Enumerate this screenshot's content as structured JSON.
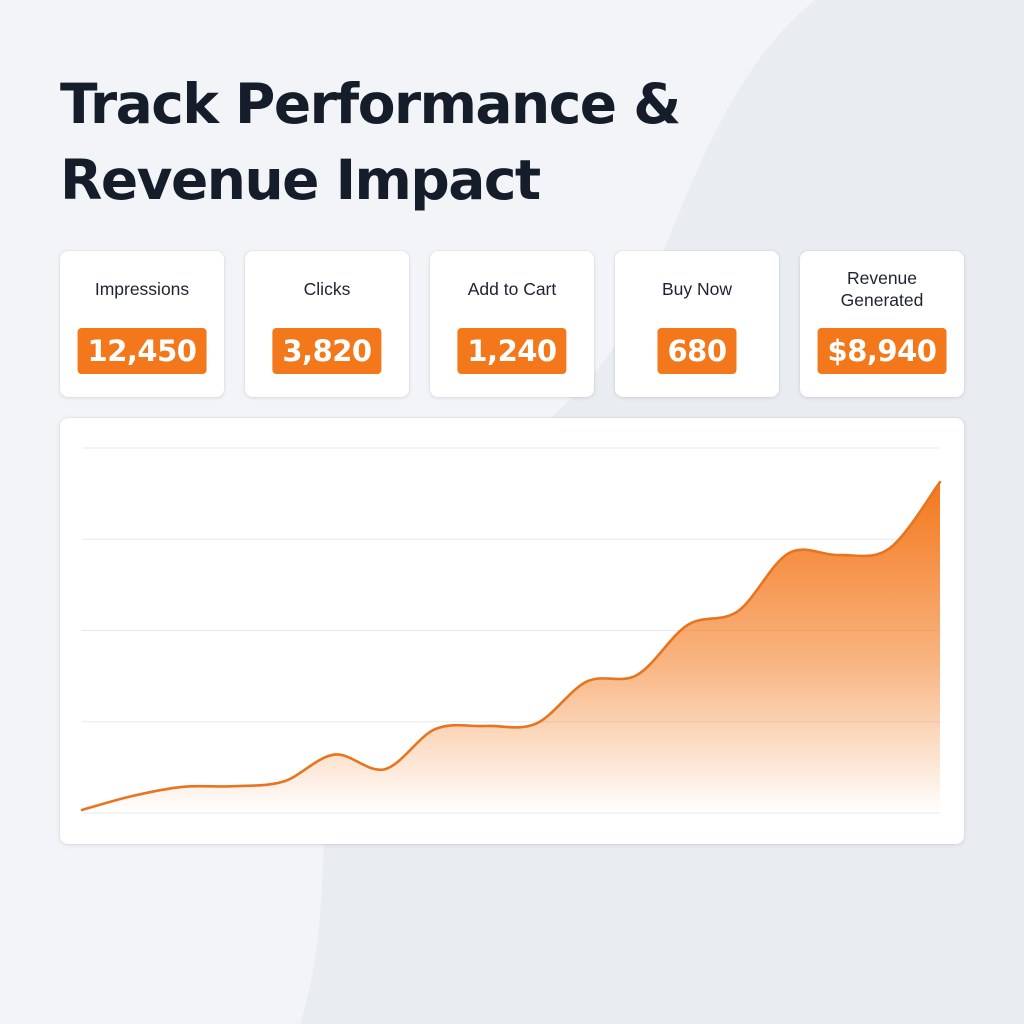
{
  "headline": {
    "line1": "Track Performance &",
    "line2": "Revenue Impact"
  },
  "metrics": [
    {
      "label": "Impressions",
      "value": "12,450"
    },
    {
      "label": "Clicks",
      "value": "3,820"
    },
    {
      "label": "Add to Cart",
      "value": "1,240"
    },
    {
      "label": "Buy Now",
      "value": "680"
    },
    {
      "label": "Revenue Generated",
      "value": "$8,940"
    }
  ],
  "colors": {
    "accent": "#f3781c",
    "headline": "#151c2a",
    "background": "#e9ecf0"
  },
  "chart_data": {
    "type": "area",
    "title": "",
    "xlabel": "",
    "ylabel": "",
    "x": [
      0,
      1,
      2,
      3,
      4,
      5,
      6,
      7,
      8,
      9,
      10,
      11,
      12,
      13,
      14,
      15,
      16,
      17
    ],
    "values": [
      5,
      28,
      43,
      44,
      52,
      96,
      72,
      138,
      143,
      147,
      216,
      227,
      309,
      332,
      427,
      424,
      435,
      544
    ],
    "ylim": [
      0,
      600
    ],
    "grid": true,
    "legend": "none"
  }
}
